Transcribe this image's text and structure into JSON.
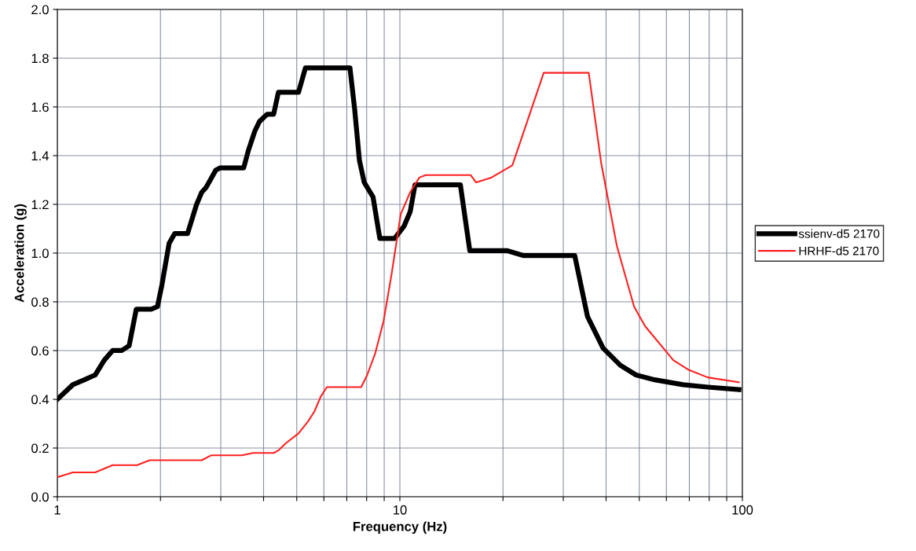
{
  "chart_data": {
    "type": "line",
    "xlabel": "Frequency (Hz)",
    "ylabel": "Acceleration (g)",
    "log": "x",
    "xlim": [
      1,
      100
    ],
    "ylim": [
      0,
      2.0
    ],
    "xticks": [
      1,
      {
        "value": 2,
        "label": null
      },
      {
        "value": 3,
        "label": null
      },
      {
        "value": 4,
        "label": null
      },
      {
        "value": 5,
        "label": null
      },
      {
        "value": 6,
        "label": null
      },
      {
        "value": 7,
        "label": null
      },
      {
        "value": 8,
        "label": null
      },
      {
        "value": 9,
        "label": null
      },
      10,
      {
        "value": 20,
        "label": null
      },
      {
        "value": 30,
        "label": null
      },
      {
        "value": 40,
        "label": null
      },
      {
        "value": 50,
        "label": null
      },
      {
        "value": 60,
        "label": null
      },
      {
        "value": 70,
        "label": null
      },
      {
        "value": 80,
        "label": null
      },
      {
        "value": 90,
        "label": null
      },
      100
    ],
    "yticks": [
      {
        "value": 0,
        "label": "0.0"
      },
      {
        "value": 0.2,
        "label": "0.2"
      },
      {
        "value": 0.4,
        "label": "0.4"
      },
      {
        "value": 0.6,
        "label": "0.6"
      },
      {
        "value": 0.8,
        "label": "0.8"
      },
      {
        "value": 1.0,
        "label": "1.0"
      },
      {
        "value": 1.2,
        "label": "1.2"
      },
      {
        "value": 1.4,
        "label": "1.4"
      },
      {
        "value": 1.6,
        "label": "1.6"
      },
      {
        "value": 1.8,
        "label": "1.8"
      },
      {
        "value": 2.0,
        "label": "2.0"
      }
    ],
    "grid": true,
    "legend": "right",
    "marker": "none",
    "line_style": "solid",
    "series": [
      {
        "name": "ssienv-d5 2170",
        "color": "#000000",
        "x": [
          1,
          1.11,
          1.2,
          1.29,
          1.37,
          1.45,
          1.54,
          1.62,
          1.7,
          1.88,
          1.96,
          2.02,
          2.12,
          2.2,
          2.4,
          2.55,
          2.64,
          2.72,
          2.9,
          2.99,
          3.5,
          3.61,
          3.77,
          3.89,
          4.1,
          4.28,
          4.42,
          5.06,
          5.3,
          7.15,
          7.38,
          7.62,
          7.87,
          8.03,
          8.35,
          8.74,
          9.65,
          10.28,
          10.72,
          11.07,
          15.02,
          16.0,
          20.6,
          22.9,
          32.4,
          35.3,
          39.2,
          44.0,
          48.9,
          55.4,
          67.0,
          79.2,
          97.7
        ],
        "values": [
          0.4,
          0.46,
          0.48,
          0.5,
          0.56,
          0.6,
          0.6,
          0.62,
          0.77,
          0.77,
          0.78,
          0.87,
          1.04,
          1.08,
          1.08,
          1.2,
          1.25,
          1.27,
          1.34,
          1.35,
          1.35,
          1.42,
          1.5,
          1.54,
          1.57,
          1.57,
          1.66,
          1.66,
          1.76,
          1.76,
          1.59,
          1.38,
          1.29,
          1.27,
          1.23,
          1.06,
          1.06,
          1.11,
          1.17,
          1.28,
          1.28,
          1.01,
          1.01,
          0.99,
          0.99,
          0.74,
          0.61,
          0.54,
          0.5,
          0.48,
          0.46,
          0.45,
          0.44
        ]
      },
      {
        "name": "HRHF-d5 2170",
        "color": "#ff2020",
        "x": [
          1,
          1.11,
          1.29,
          1.45,
          1.71,
          1.86,
          2.64,
          2.81,
          2.99,
          3.46,
          3.73,
          4.28,
          4.42,
          4.65,
          5.06,
          5.4,
          5.63,
          5.87,
          6.12,
          7.71,
          8.03,
          8.48,
          8.96,
          9.45,
          10.06,
          10.72,
          11.4,
          11.9,
          16.1,
          16.7,
          18.5,
          21.3,
          26.3,
          35.6,
          38.7,
          43.0,
          48.3,
          52.0,
          62.9,
          69.9,
          79.2,
          97.7
        ],
        "values": [
          0.08,
          0.1,
          0.1,
          0.13,
          0.13,
          0.15,
          0.15,
          0.17,
          0.17,
          0.17,
          0.18,
          0.18,
          0.19,
          0.22,
          0.26,
          0.31,
          0.35,
          0.41,
          0.45,
          0.45,
          0.5,
          0.59,
          0.72,
          0.91,
          1.16,
          1.25,
          1.31,
          1.32,
          1.32,
          1.29,
          1.31,
          1.36,
          1.74,
          1.74,
          1.37,
          1.03,
          0.78,
          0.7,
          0.56,
          0.52,
          0.49,
          0.47
        ]
      }
    ]
  }
}
